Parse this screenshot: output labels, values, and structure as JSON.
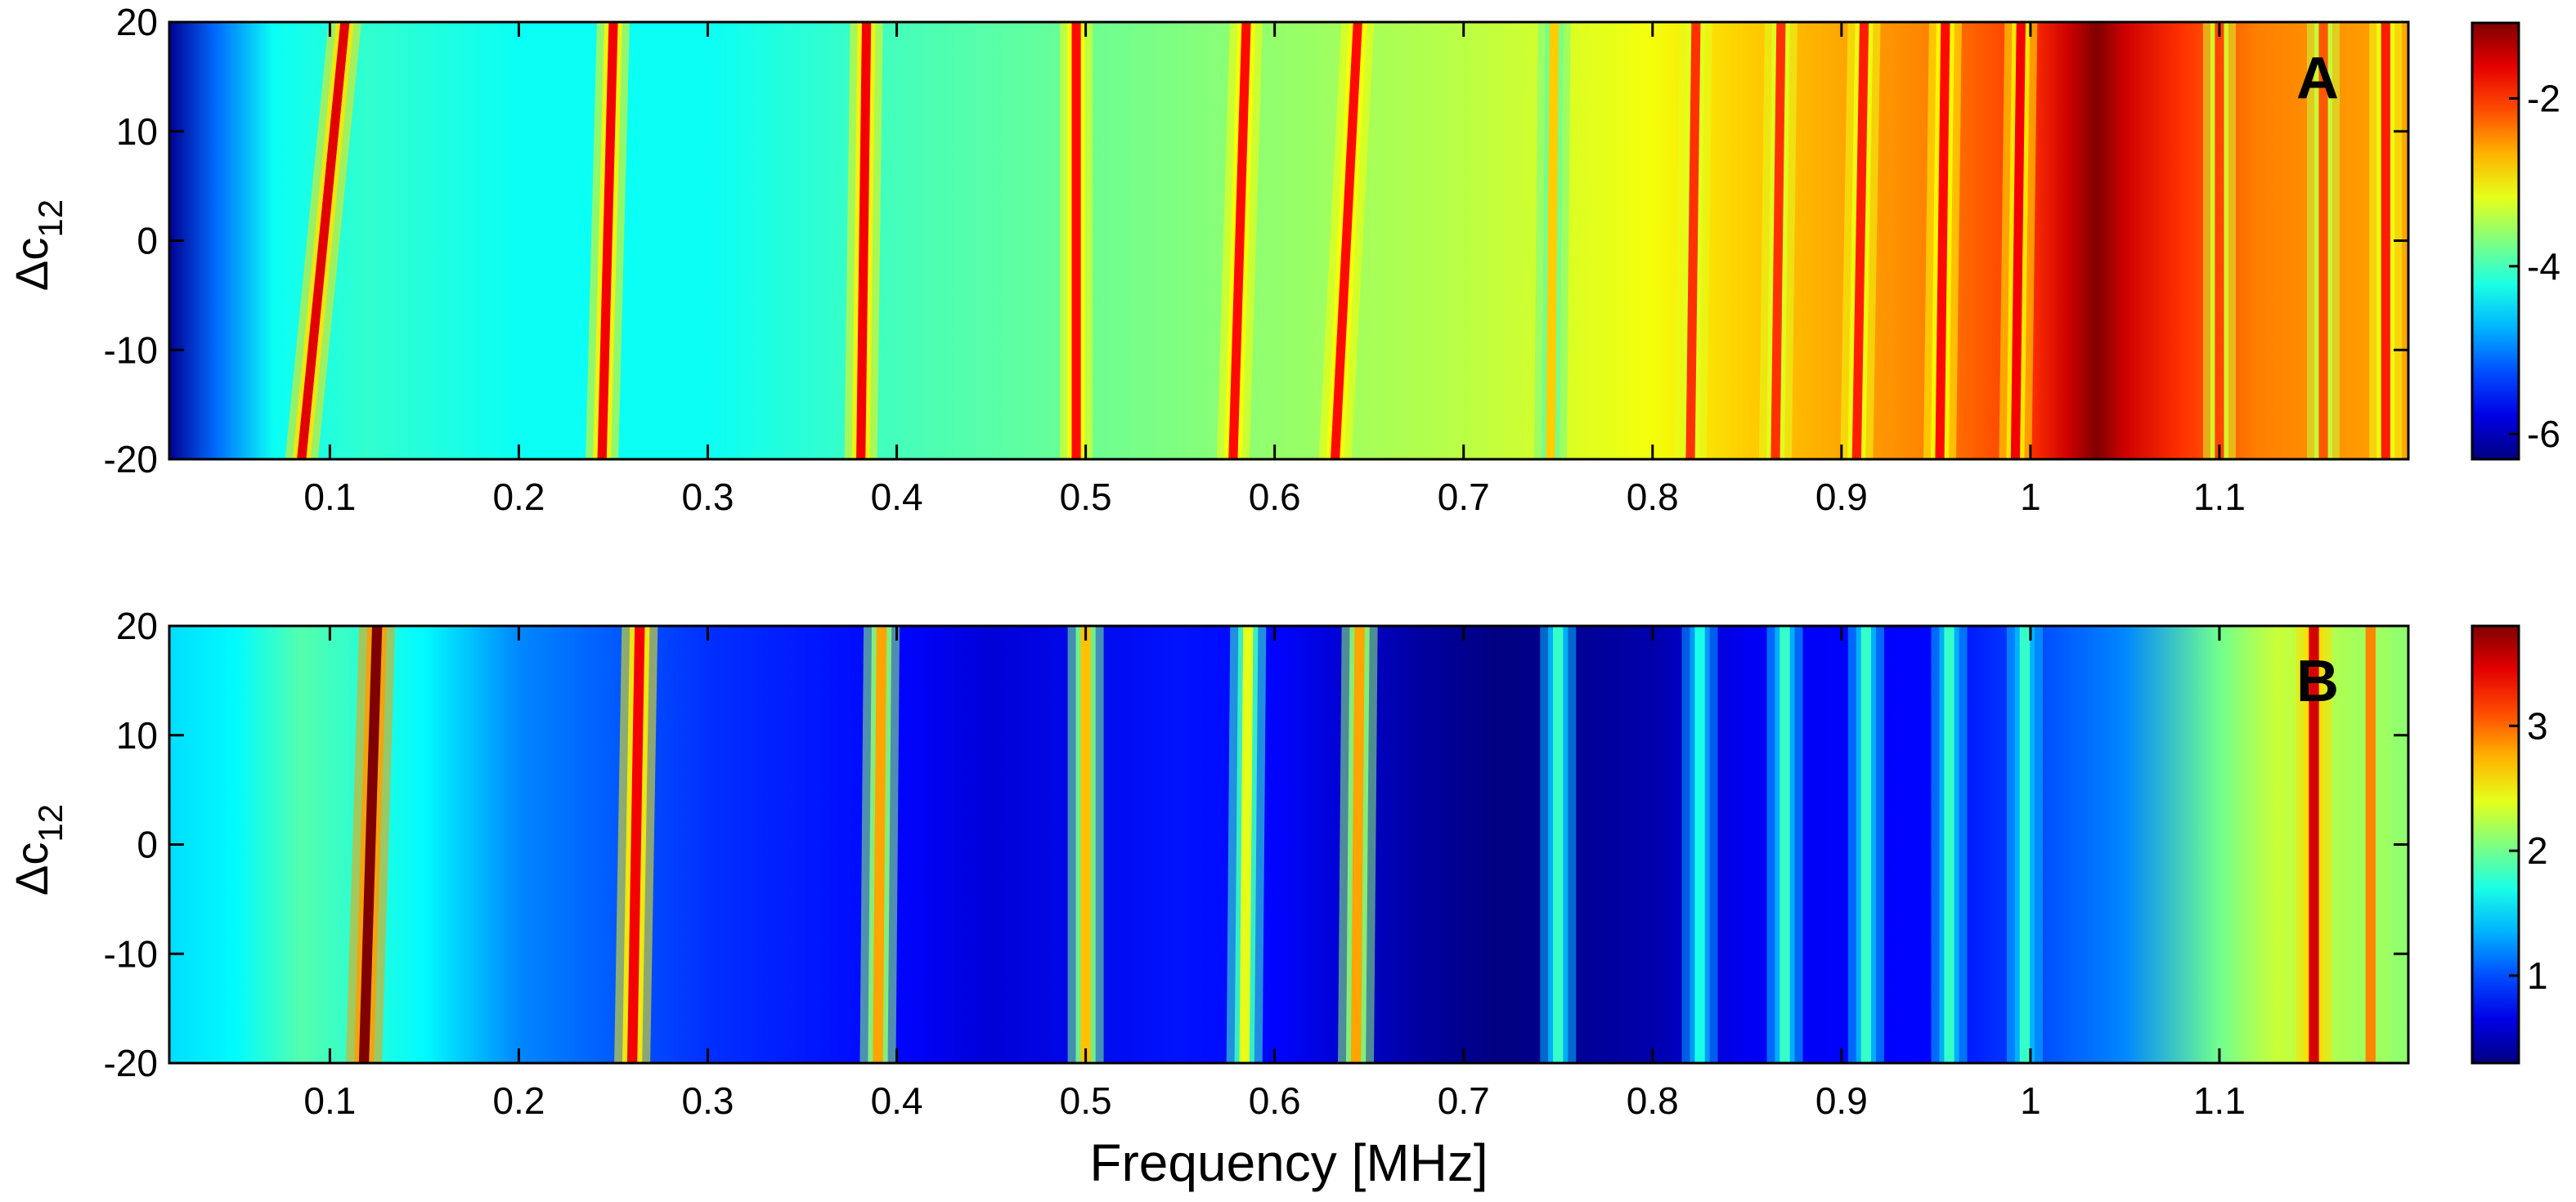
{
  "chart_data": [
    {
      "type": "heatmap",
      "panel_label": "A",
      "xlabel": "",
      "ylabel_main": "Δc",
      "ylabel_sub": "12",
      "xlim": [
        0.015,
        1.2
      ],
      "ylim": [
        -20,
        20
      ],
      "xticks": [
        "0.1",
        "0.2",
        "0.3",
        "0.4",
        "0.5",
        "0.6",
        "0.7",
        "0.8",
        "0.9",
        "1",
        "1.1"
      ],
      "yticks": [
        "20",
        "10",
        "0",
        "-10",
        "-20"
      ],
      "colorbar": {
        "range": [
          -6.3,
          -1.1
        ],
        "ticks": [
          "-2",
          "-4",
          "-6"
        ],
        "colormap": "jet"
      },
      "background_profile": [
        {
          "x": 0.015,
          "v": -6.2
        },
        {
          "x": 0.04,
          "v": -5.1
        },
        {
          "x": 0.07,
          "v": -4.3
        },
        {
          "x": 0.12,
          "v": -4.1
        },
        {
          "x": 0.2,
          "v": -4.3
        },
        {
          "x": 0.3,
          "v": -4.3
        },
        {
          "x": 0.4,
          "v": -4.0
        },
        {
          "x": 0.5,
          "v": -3.8
        },
        {
          "x": 0.6,
          "v": -3.6
        },
        {
          "x": 0.7,
          "v": -3.4
        },
        {
          "x": 0.8,
          "v": -3.1
        },
        {
          "x": 0.85,
          "v": -2.8
        },
        {
          "x": 0.9,
          "v": -2.6
        },
        {
          "x": 0.95,
          "v": -2.4
        },
        {
          "x": 1.0,
          "v": -2.0
        },
        {
          "x": 1.02,
          "v": -1.5
        },
        {
          "x": 1.035,
          "v": -1.1
        },
        {
          "x": 1.05,
          "v": -1.5
        },
        {
          "x": 1.08,
          "v": -2.0
        },
        {
          "x": 1.12,
          "v": -2.4
        },
        {
          "x": 1.2,
          "v": -2.6
        }
      ],
      "ridges": [
        {
          "x_top": 0.108,
          "x_bottom": 0.085,
          "peak": -1.6
        },
        {
          "x_top": 0.25,
          "x_bottom": 0.244,
          "peak": -1.7
        },
        {
          "x_top": 0.384,
          "x_bottom": 0.381,
          "peak": -1.7
        },
        {
          "x_top": 0.495,
          "x_bottom": 0.495,
          "peak": -1.8
        },
        {
          "x_top": 0.585,
          "x_bottom": 0.578,
          "peak": -1.8
        },
        {
          "x_top": 0.644,
          "x_bottom": 0.632,
          "peak": -1.8
        },
        {
          "x_top": 0.748,
          "x_bottom": 0.746,
          "peak": -2.8
        },
        {
          "x_top": 0.823,
          "x_bottom": 0.82,
          "peak": -2.0
        },
        {
          "x_top": 0.868,
          "x_bottom": 0.865,
          "peak": -2.0
        },
        {
          "x_top": 0.912,
          "x_bottom": 0.908,
          "peak": -1.9
        },
        {
          "x_top": 0.955,
          "x_bottom": 0.952,
          "peak": -1.8
        },
        {
          "x_top": 0.995,
          "x_bottom": 0.992,
          "peak": -1.7
        },
        {
          "x_top": 1.1,
          "x_bottom": 1.1,
          "peak": -2.1
        },
        {
          "x_top": 1.155,
          "x_bottom": 1.155,
          "peak": -2.2
        },
        {
          "x_top": 1.188,
          "x_bottom": 1.188,
          "peak": -1.9
        }
      ]
    },
    {
      "type": "heatmap",
      "panel_label": "B",
      "xlabel": "Frequency [MHz]",
      "ylabel_main": "Δc",
      "ylabel_sub": "12",
      "xlim": [
        0.015,
        1.2
      ],
      "ylim": [
        -20,
        20
      ],
      "xticks": [
        "0.1",
        "0.2",
        "0.3",
        "0.4",
        "0.5",
        "0.6",
        "0.7",
        "0.8",
        "0.9",
        "1",
        "1.1"
      ],
      "yticks": [
        "20",
        "10",
        "0",
        "-10",
        "-20"
      ],
      "colorbar": {
        "range": [
          0.3,
          3.8
        ],
        "ticks": [
          "3",
          "2",
          "1"
        ],
        "colormap": "jet"
      },
      "background_profile": [
        {
          "x": 0.015,
          "v": 1.5
        },
        {
          "x": 0.05,
          "v": 1.6
        },
        {
          "x": 0.085,
          "v": 1.9
        },
        {
          "x": 0.15,
          "v": 1.6
        },
        {
          "x": 0.2,
          "v": 1.2
        },
        {
          "x": 0.3,
          "v": 0.9
        },
        {
          "x": 0.4,
          "v": 0.75
        },
        {
          "x": 0.45,
          "v": 0.6
        },
        {
          "x": 0.55,
          "v": 0.8
        },
        {
          "x": 0.6,
          "v": 0.75
        },
        {
          "x": 0.68,
          "v": 0.4
        },
        {
          "x": 0.72,
          "v": 0.3
        },
        {
          "x": 0.8,
          "v": 0.45
        },
        {
          "x": 0.85,
          "v": 0.7
        },
        {
          "x": 0.95,
          "v": 0.75
        },
        {
          "x": 1.05,
          "v": 1.2
        },
        {
          "x": 1.1,
          "v": 2.0
        },
        {
          "x": 1.13,
          "v": 2.3
        },
        {
          "x": 1.2,
          "v": 2.1
        }
      ],
      "ridges": [
        {
          "x_top": 0.125,
          "x_bottom": 0.118,
          "peak": 3.8
        },
        {
          "x_top": 0.264,
          "x_bottom": 0.26,
          "peak": 3.4
        },
        {
          "x_top": 0.392,
          "x_bottom": 0.39,
          "peak": 2.8
        },
        {
          "x_top": 0.5,
          "x_bottom": 0.5,
          "peak": 2.7
        },
        {
          "x_top": 0.586,
          "x_bottom": 0.584,
          "peak": 2.4
        },
        {
          "x_top": 0.645,
          "x_bottom": 0.643,
          "peak": 2.8
        },
        {
          "x_top": 0.75,
          "x_bottom": 0.75,
          "peak": 1.8
        },
        {
          "x_top": 0.825,
          "x_bottom": 0.825,
          "peak": 1.7
        },
        {
          "x_top": 0.87,
          "x_bottom": 0.87,
          "peak": 1.8
        },
        {
          "x_top": 0.913,
          "x_bottom": 0.913,
          "peak": 1.8
        },
        {
          "x_top": 0.957,
          "x_bottom": 0.957,
          "peak": 1.8
        },
        {
          "x_top": 0.997,
          "x_bottom": 0.997,
          "peak": 1.8
        },
        {
          "x_top": 1.15,
          "x_bottom": 1.15,
          "peak": 3.5
        },
        {
          "x_top": 1.18,
          "x_bottom": 1.18,
          "peak": 2.9
        }
      ]
    }
  ]
}
